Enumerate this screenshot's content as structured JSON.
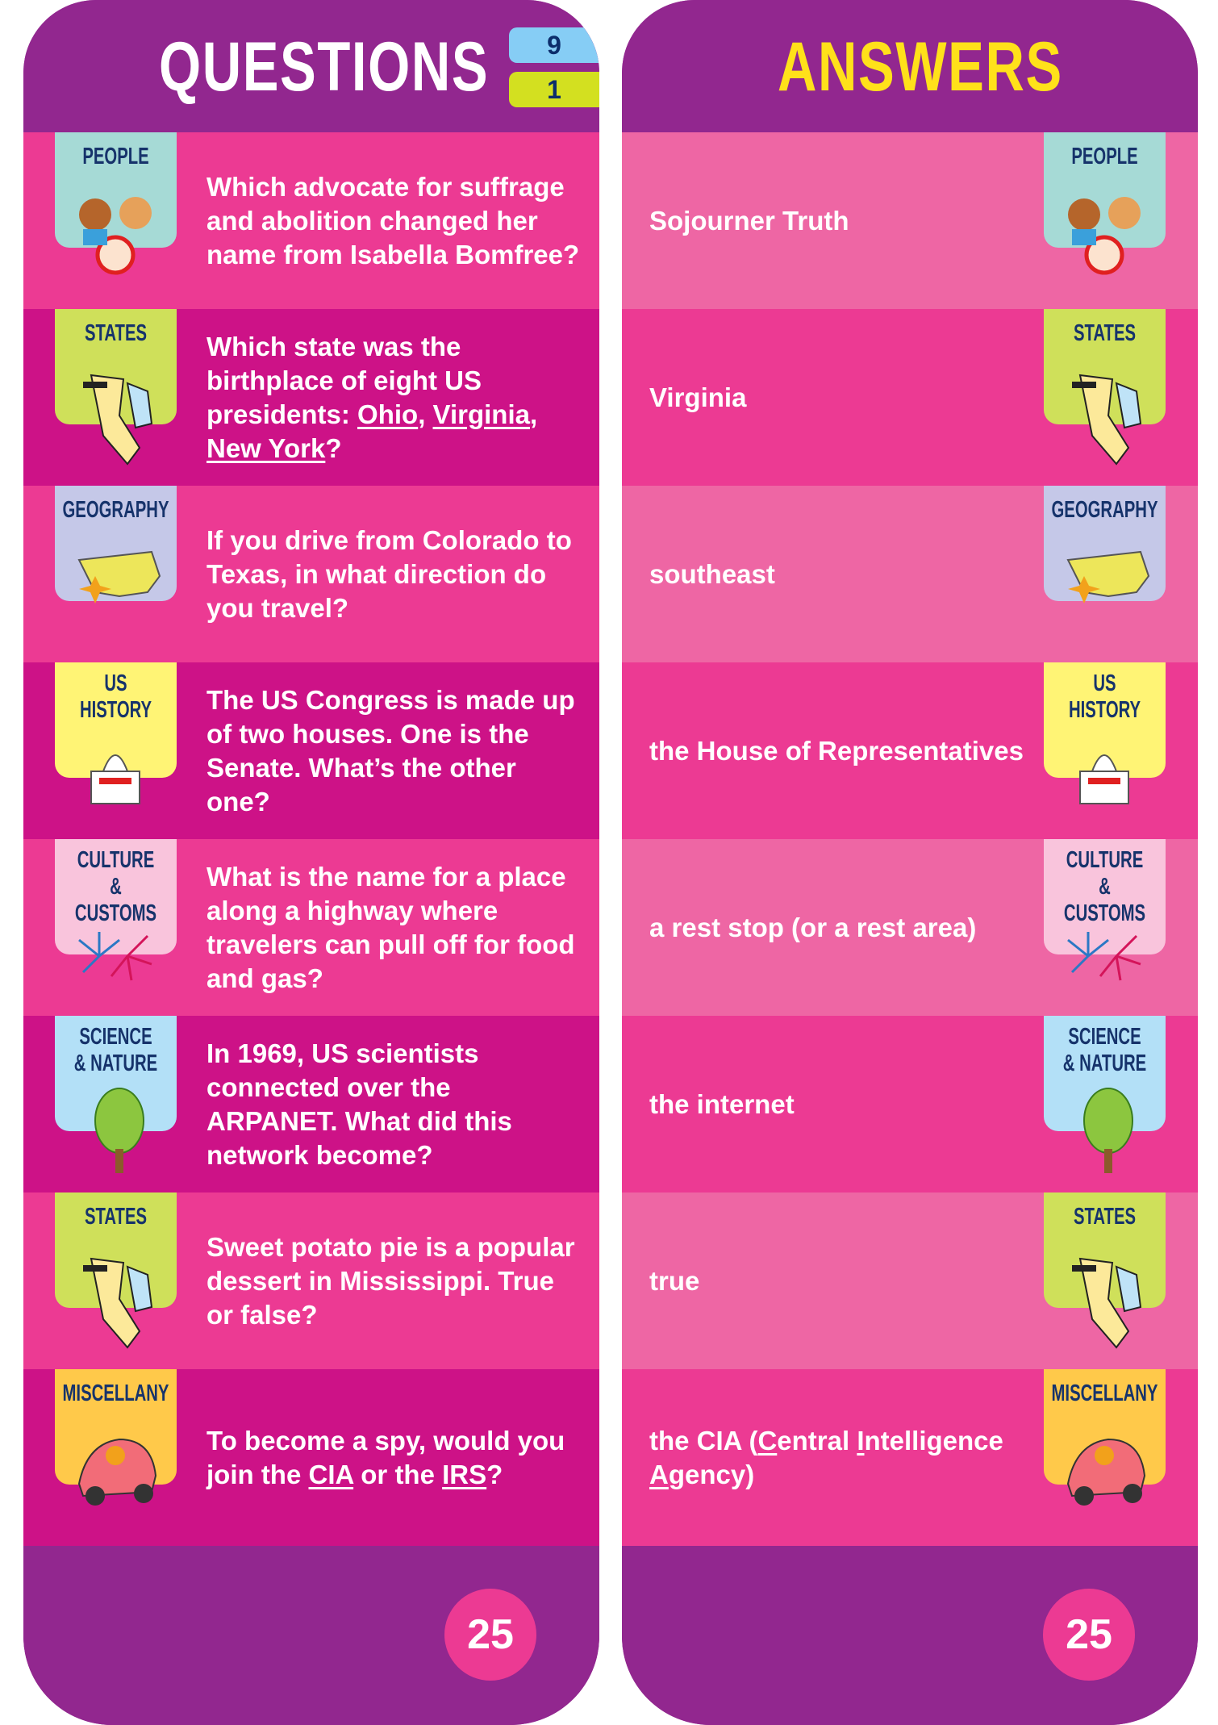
{
  "questions_card": {
    "title": "QUESTIONS",
    "chips": [
      "9",
      "1"
    ],
    "chip_colors": [
      "#86CDF5",
      "#D3E020"
    ],
    "page_number": "25"
  },
  "answers_card": {
    "title": "ANSWERS",
    "page_number": "25"
  },
  "colors": {
    "purple": "#92278F",
    "pink": "#EC3A93",
    "magenta": "#CD1287",
    "light_pink": "#EE66A4",
    "yellow": "#FFE11A"
  },
  "rows": [
    {
      "category": "PEOPLE",
      "icon": "kids-icon",
      "color": "#A6DAD6",
      "question": [
        {
          "t": "Which advocate for suffrage and abolition changed her name from Isabella Bomfree?"
        }
      ],
      "answer": [
        {
          "t": "Sojourner Truth"
        }
      ]
    },
    {
      "category": "STATES",
      "icon": "states-icon",
      "color": "#CFE05A",
      "question": [
        {
          "t": "Which state was the birthplace of eight US presidents: "
        },
        {
          "t": "Ohio",
          "u": true
        },
        {
          "t": ", "
        },
        {
          "t": "Virginia",
          "u": true
        },
        {
          "t": ", "
        },
        {
          "t": "New York",
          "u": true
        },
        {
          "t": "?"
        }
      ],
      "answer": [
        {
          "t": "Virginia"
        }
      ]
    },
    {
      "category": "GEOGRAPHY",
      "icon": "us-map-icon",
      "color": "#C5C8E8",
      "question": [
        {
          "t": "If you drive from Colorado to Texas, in what direction do you travel?"
        }
      ],
      "answer": [
        {
          "t": "southeast"
        }
      ]
    },
    {
      "category": "US HISTORY",
      "icon": "capitol-icon",
      "color": "#FFF475",
      "question": [
        {
          "t": "The US Congress is made up of two houses. One is the Senate. What’s the other one?"
        }
      ],
      "answer": [
        {
          "t": "the House of Representatives"
        }
      ]
    },
    {
      "category": "CULTURE & CUSTOMS",
      "icon": "fireworks-icon",
      "color": "#F9C4DC",
      "question": [
        {
          "t": "What is the name for a place along a highway where travelers can pull off for food and gas?"
        }
      ],
      "answer": [
        {
          "t": "a rest stop (or a rest area)"
        }
      ]
    },
    {
      "category": "SCIENCE & NATURE",
      "icon": "tree-icon",
      "color": "#B3E0F7",
      "question": [
        {
          "t": "In 1969, US scientists connected over the ARPANET. What did this network become?"
        }
      ],
      "answer": [
        {
          "t": "the internet"
        }
      ]
    },
    {
      "category": "STATES",
      "icon": "states-icon",
      "color": "#CFE05A",
      "question": [
        {
          "t": "Sweet potato pie is a popular dessert in Mississippi. True or false?"
        }
      ],
      "answer": [
        {
          "t": "true"
        }
      ]
    },
    {
      "category": "MISCELLANY",
      "icon": "car-icon",
      "color": "#FFC94A",
      "question": [
        {
          "t": "To become a spy, would you join the "
        },
        {
          "t": "CIA",
          "u": true
        },
        {
          "t": " or the "
        },
        {
          "t": "IRS",
          "u": true
        },
        {
          "t": "?"
        }
      ],
      "answer": [
        {
          "t": "the CIA ("
        },
        {
          "t": "C",
          "u": true
        },
        {
          "t": "entral "
        },
        {
          "t": "I",
          "u": true
        },
        {
          "t": "ntelligence "
        },
        {
          "t": "A",
          "u": true
        },
        {
          "t": "gency)"
        }
      ]
    }
  ]
}
